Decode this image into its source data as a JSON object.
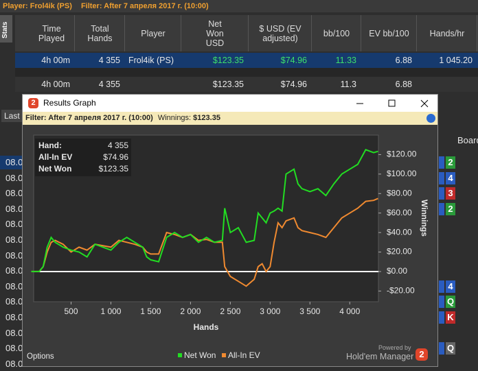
{
  "header": {
    "player": "Player: Frol4ik (PS)",
    "filter": "Filter: After 7 апреля 2017 г. (10:00)"
  },
  "sidebar_tab": "Stats",
  "table": {
    "columns": [
      "Time Played",
      "Total Hands",
      "Player",
      "Net Won USD",
      "$ USD (EV adjusted)",
      "bb/100",
      "EV bb/100",
      "Hands/hr"
    ],
    "rows": [
      [
        "4h 00m",
        "4 355",
        "Frol4ik (PS)",
        "$123.35",
        "$74.96",
        "11.33",
        "6.88",
        "1 045.20"
      ],
      [
        "4h 00m",
        "4 355",
        null,
        "$123.35",
        "$74.96",
        "11.3",
        "6.88",
        null
      ]
    ]
  },
  "background": {
    "last_tab": "Last",
    "board_header": "Board",
    "dates": [
      "08.0",
      "08.0",
      "08.0",
      "08.0",
      "08.0",
      "08.0",
      "08.0",
      "08.0",
      "08.0",
      "08.0",
      "08.0",
      "08.0",
      "08.0",
      "08.0"
    ],
    "cards": [
      {
        "rank": "2",
        "color": "#2a9a3a",
        "row": 0
      },
      {
        "rank": "4",
        "color": "#2a5cc0",
        "row": 1
      },
      {
        "rank": "3",
        "color": "#c02a2a",
        "row": 2
      },
      {
        "rank": "2",
        "color": "#2a9a3a",
        "row": 3
      },
      {
        "rank": "4",
        "color": "#2a5cc0",
        "row": 8
      },
      {
        "rank": "Q",
        "color": "#2a9a3a",
        "row": 9
      },
      {
        "rank": "K",
        "color": "#c02a2a",
        "row": 10
      },
      {
        "rank": "Q",
        "color": "#666666",
        "row": 12
      }
    ]
  },
  "window": {
    "title": "Results Graph",
    "logo": "2",
    "filter": "Filter: After 7 апреля 2017 г. (10:00)",
    "winnings_label": "Winnings:",
    "winnings": "$123.35",
    "options": "Options",
    "powered_by": "Powered by",
    "brand": "Hold'em Manager"
  },
  "info_box": [
    [
      "Hand:",
      "4 355"
    ],
    [
      "All-In EV",
      "$74.96"
    ],
    [
      "Net Won",
      "$123.35"
    ]
  ],
  "chart_data": {
    "type": "line",
    "xlabel": "Hands",
    "ylabel": "Winnings",
    "x": [
      0,
      100,
      150,
      200,
      250,
      300,
      400,
      500,
      600,
      700,
      800,
      1000,
      1100,
      1200,
      1300,
      1400,
      1450,
      1500,
      1600,
      1700,
      1800,
      1900,
      2000,
      2100,
      2200,
      2300,
      2400,
      2430,
      2500,
      2600,
      2700,
      2800,
      2850,
      2900,
      2950,
      3000,
      3050,
      3100,
      3150,
      3200,
      3300,
      3350,
      3400,
      3500,
      3600,
      3700,
      3800,
      3900,
      4000,
      4100,
      4200,
      4300,
      4355
    ],
    "series": [
      {
        "name": "Net Won",
        "color": "#22dd22",
        "values": [
          0,
          0,
          5,
          25,
          35,
          30,
          25,
          22,
          20,
          15,
          28,
          22,
          30,
          35,
          30,
          25,
          15,
          12,
          10,
          35,
          40,
          35,
          38,
          30,
          35,
          30,
          32,
          65,
          40,
          45,
          30,
          32,
          60,
          55,
          50,
          60,
          62,
          65,
          62,
          100,
          105,
          90,
          85,
          82,
          85,
          78,
          90,
          100,
          105,
          110,
          125,
          122,
          123.35
        ]
      },
      {
        "name": "All-In EV",
        "color": "#f08a30",
        "values": [
          0,
          0,
          5,
          20,
          30,
          32,
          28,
          20,
          25,
          22,
          28,
          25,
          32,
          30,
          28,
          25,
          20,
          18,
          18,
          40,
          38,
          35,
          38,
          32,
          33,
          30,
          30,
          5,
          -5,
          -10,
          -15,
          -8,
          5,
          8,
          0,
          5,
          30,
          50,
          45,
          52,
          55,
          45,
          42,
          40,
          38,
          35,
          45,
          55,
          60,
          65,
          72,
          73,
          74.96
        ]
      }
    ],
    "xlim": [
      30,
      4360
    ],
    "ylim": [
      -31,
      140
    ],
    "xticks": [
      500,
      {
        "value": 1000,
        "label": "1 000"
      },
      {
        "value": 1500,
        "label": "1 500"
      },
      {
        "value": 2000,
        "label": "2 000"
      },
      {
        "value": 2500,
        "label": "2 500"
      },
      {
        "value": 3000,
        "label": "3 000"
      },
      {
        "value": 3500,
        "label": "3 500"
      },
      {
        "value": 4000,
        "label": "4 000"
      }
    ],
    "yticks": [
      {
        "value": 120,
        "label": "$120.00"
      },
      {
        "value": 100,
        "label": "$100.00"
      },
      {
        "value": 80,
        "label": "$80.00"
      },
      {
        "value": 60,
        "label": "$60.00"
      },
      {
        "value": 40,
        "label": "$40.00"
      },
      {
        "value": 20,
        "label": "$20.00"
      },
      {
        "value": 0,
        "label": "$0.00"
      },
      {
        "value": -20,
        "label": "-$20.00"
      }
    ],
    "grid": false
  }
}
